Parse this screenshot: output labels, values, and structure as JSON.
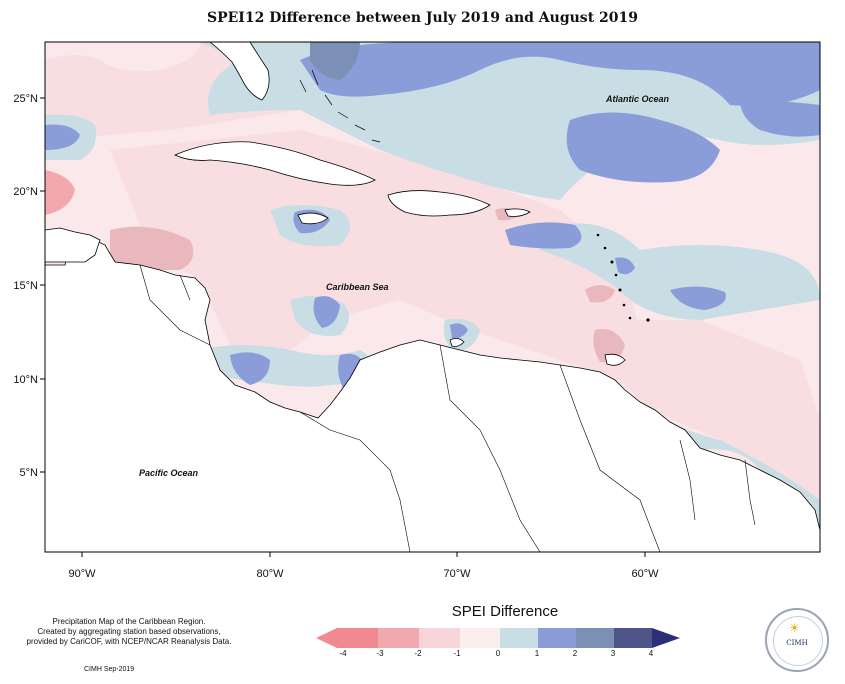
{
  "title": "SPEI12 Difference between July 2019 and August 2019",
  "map": {
    "labels": {
      "atlantic": "Atlantic Ocean",
      "caribbean": "Caribbean Sea",
      "pacific": "Pacific Ocean"
    },
    "lat_ticks": [
      "25°N",
      "20°N",
      "15°N",
      "10°N",
      "5°N"
    ],
    "lon_ticks": [
      "90°W",
      "80°W",
      "70°W",
      "60°W"
    ],
    "colors": {
      "land": "#ffffff",
      "border": "#000000"
    }
  },
  "legend": {
    "title": "SPEI Difference",
    "tick_labels": [
      "-4",
      "-3",
      "-2",
      "-1",
      "0",
      "1",
      "2",
      "3",
      "4"
    ],
    "colors": [
      "#f08a90",
      "#f2a9ae",
      "#e9b8bd",
      "#f8dde1",
      "#fbefee",
      "#c9dde5",
      "#8b9dd9",
      "#7b90b4",
      "#4e5589",
      "#2a2f78"
    ]
  },
  "notes": {
    "line1": "Precipitation Map of the Caribbean Region.",
    "line2": "Created by aggregating station based observations,",
    "line3": "provided by CariCOF, with NCEP/NCAR Reanalysis Data.",
    "credit": "CIMH Sep-2019"
  },
  "logo": {
    "text": "CIMH"
  }
}
